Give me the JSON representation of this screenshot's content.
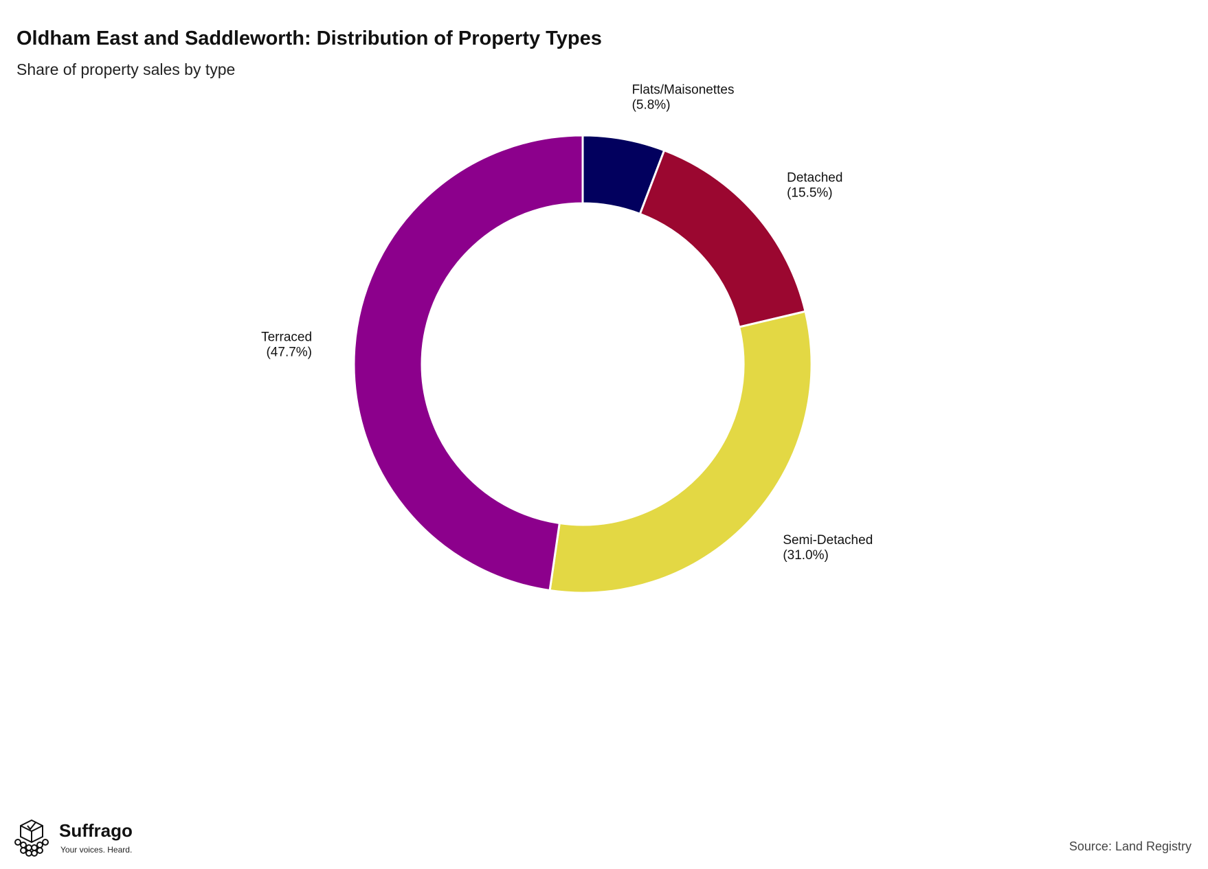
{
  "header": {
    "title": "Oldham East and Saddleworth: Distribution of Property Types",
    "subtitle": "Share of property sales by type"
  },
  "chart_data": {
    "type": "pie",
    "style": "donut",
    "title": "Oldham East and Saddleworth: Distribution of Property Types",
    "subtitle": "Share of property sales by type",
    "categories": [
      "Flats/Maisonettes",
      "Detached",
      "Semi-Detached",
      "Terraced"
    ],
    "values": [
      5.8,
      15.5,
      31.0,
      47.7
    ],
    "labels": [
      [
        "Flats/Maisonettes",
        "(5.8%)"
      ],
      [
        "Detached",
        "(15.5%)"
      ],
      [
        "Semi-Detached",
        "(31.0%)"
      ],
      [
        "Terraced",
        "(47.7%)"
      ]
    ],
    "colors": [
      "#02005e",
      "#9b0730",
      "#e3d844",
      "#8c008c"
    ],
    "unit": "%",
    "legend": "none"
  },
  "branding": {
    "name": "Suffrago",
    "tagline": "Your voices. Heard.",
    "logo_icon": "ballot-box-icon"
  },
  "footer": {
    "source": "Source: Land Registry"
  }
}
